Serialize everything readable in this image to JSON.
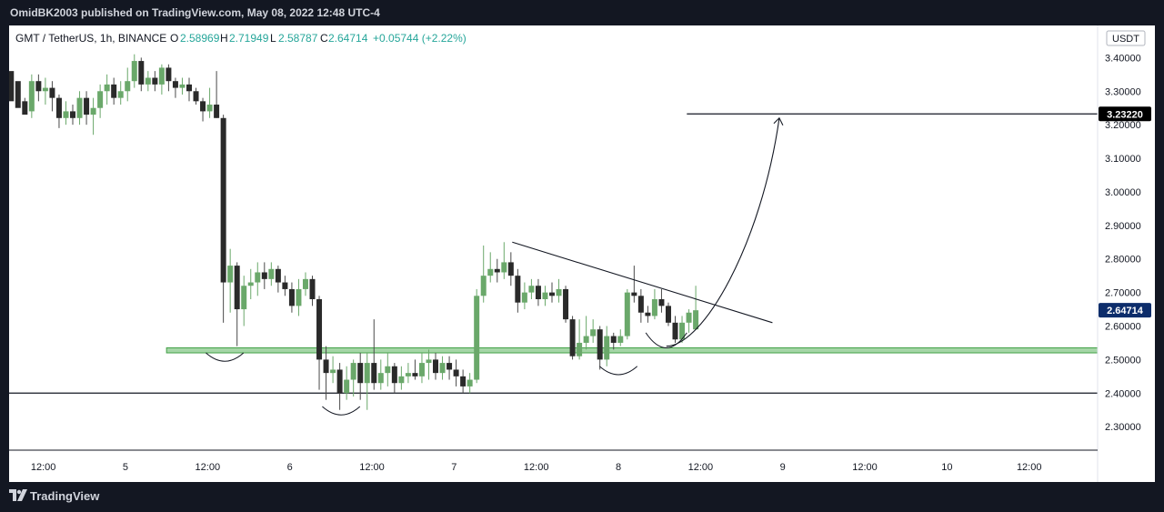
{
  "header": {
    "publish_line": "OmidBK2003 published on TradingView.com, May 08, 2022 12:48 UTC-4"
  },
  "footer": {
    "brand": "TradingView"
  },
  "chart_data": {
    "type": "candlestick",
    "symbol_line": "GMT / TetherUS, 1h, BINANCE",
    "ohlc": {
      "o_label": "O",
      "open": "2.58969",
      "h_label": "H",
      "high": "2.71949",
      "l_label": "L",
      "low": "2.58787",
      "c_label": "C",
      "close": "2.64714",
      "change": "+0.05744 (+2.22%)"
    },
    "currency": "USDT",
    "ylim": [
      2.23,
      3.42
    ],
    "y_ticks": [
      {
        "v": 3.4,
        "label": "3.40000"
      },
      {
        "v": 3.3,
        "label": "3.30000"
      },
      {
        "v": 3.2,
        "label": "3.20000"
      },
      {
        "v": 3.1,
        "label": "3.10000"
      },
      {
        "v": 3.0,
        "label": "3.00000"
      },
      {
        "v": 2.9,
        "label": "2.90000"
      },
      {
        "v": 2.8,
        "label": "2.80000"
      },
      {
        "v": 2.7,
        "label": "2.70000"
      },
      {
        "v": 2.6,
        "label": "2.60000"
      },
      {
        "v": 2.5,
        "label": "2.50000"
      },
      {
        "v": 2.4,
        "label": "2.40000"
      },
      {
        "v": 2.3,
        "label": "2.30000"
      }
    ],
    "x_ticks": [
      {
        "t": 12,
        "label": "12:00"
      },
      {
        "t": 24,
        "label": "5"
      },
      {
        "t": 36,
        "label": "12:00"
      },
      {
        "t": 48,
        "label": "6"
      },
      {
        "t": 60,
        "label": "12:00"
      },
      {
        "t": 72,
        "label": "7"
      },
      {
        "t": 84,
        "label": "12:00"
      },
      {
        "t": 96,
        "label": "8"
      },
      {
        "t": 108,
        "label": "12:00"
      },
      {
        "t": 120,
        "label": "9"
      },
      {
        "t": 132,
        "label": "12:00"
      },
      {
        "t": 144,
        "label": "10"
      },
      {
        "t": 156,
        "label": "12:00"
      }
    ],
    "xlim": [
      7,
      166
    ],
    "price_labels": [
      {
        "value": 3.2322,
        "label": "3.23220",
        "style": "black"
      },
      {
        "value": 2.64714,
        "label": "2.64714",
        "style": "navy"
      }
    ],
    "candles": [
      [
        7.3,
        3.36,
        3.27,
        3.35,
        3.33
      ],
      [
        8.3,
        3.33,
        3.25,
        3.32,
        3.27
      ],
      [
        9.3,
        3.27,
        3.23,
        3.28,
        3.24
      ],
      [
        10.3,
        3.24,
        3.33,
        3.35,
        3.22
      ],
      [
        11.3,
        3.33,
        3.3,
        3.35,
        3.27
      ],
      [
        12.3,
        3.3,
        3.31,
        3.34,
        3.26
      ],
      [
        13.3,
        3.31,
        3.28,
        3.33,
        3.24
      ],
      [
        14.3,
        3.28,
        3.22,
        3.29,
        3.19
      ],
      [
        15.3,
        3.22,
        3.24,
        3.27,
        3.2
      ],
      [
        16.3,
        3.24,
        3.22,
        3.26,
        3.2
      ],
      [
        17.3,
        3.22,
        3.28,
        3.3,
        3.2
      ],
      [
        18.3,
        3.28,
        3.23,
        3.3,
        3.2
      ],
      [
        19.3,
        3.23,
        3.25,
        3.28,
        3.17
      ],
      [
        20.3,
        3.25,
        3.3,
        3.32,
        3.22
      ],
      [
        21.3,
        3.3,
        3.32,
        3.35,
        3.26
      ],
      [
        22.3,
        3.32,
        3.28,
        3.34,
        3.26
      ],
      [
        23.3,
        3.28,
        3.3,
        3.33,
        3.26
      ],
      [
        24.3,
        3.3,
        3.33,
        3.37,
        3.27
      ],
      [
        25.3,
        3.33,
        3.39,
        3.41,
        3.31
      ],
      [
        26.3,
        3.39,
        3.32,
        3.4,
        3.3
      ],
      [
        27.3,
        3.32,
        3.34,
        3.36,
        3.3
      ],
      [
        28.3,
        3.34,
        3.32,
        3.36,
        3.3
      ],
      [
        29.3,
        3.32,
        3.37,
        3.38,
        3.29
      ],
      [
        30.3,
        3.37,
        3.33,
        3.38,
        3.3
      ],
      [
        31.3,
        3.33,
        3.31,
        3.34,
        3.28
      ],
      [
        32.3,
        3.31,
        3.32,
        3.34,
        3.29
      ],
      [
        33.3,
        3.32,
        3.3,
        3.34,
        3.27
      ],
      [
        34.3,
        3.3,
        3.27,
        3.31,
        3.26
      ],
      [
        35.3,
        3.27,
        3.24,
        3.28,
        3.21
      ],
      [
        36.3,
        3.24,
        3.26,
        3.31,
        3.22
      ],
      [
        37.3,
        3.26,
        3.22,
        3.36,
        3.22
      ],
      [
        38.3,
        3.22,
        2.73,
        3.23,
        2.61
      ],
      [
        39.3,
        2.73,
        2.78,
        2.83,
        2.64
      ],
      [
        40.3,
        2.78,
        2.65,
        2.79,
        2.54
      ],
      [
        41.3,
        2.65,
        2.72,
        2.75,
        2.6
      ],
      [
        42.3,
        2.72,
        2.73,
        2.77,
        2.68
      ],
      [
        43.3,
        2.73,
        2.76,
        2.79,
        2.69
      ],
      [
        44.3,
        2.76,
        2.74,
        2.79,
        2.71
      ],
      [
        45.3,
        2.74,
        2.77,
        2.79,
        2.72
      ],
      [
        46.3,
        2.77,
        2.73,
        2.78,
        2.7
      ],
      [
        47.3,
        2.73,
        2.71,
        2.75,
        2.69
      ],
      [
        48.3,
        2.71,
        2.66,
        2.73,
        2.64
      ],
      [
        49.3,
        2.66,
        2.71,
        2.74,
        2.63
      ],
      [
        50.3,
        2.71,
        2.74,
        2.76,
        2.69
      ],
      [
        51.3,
        2.74,
        2.68,
        2.75,
        2.66
      ],
      [
        52.3,
        2.68,
        2.5,
        2.69,
        2.41
      ],
      [
        53.3,
        2.5,
        2.46,
        2.54,
        2.38
      ],
      [
        54.3,
        2.46,
        2.47,
        2.51,
        2.43
      ],
      [
        55.3,
        2.47,
        2.4,
        2.49,
        2.35
      ],
      [
        56.3,
        2.4,
        2.44,
        2.48,
        2.38
      ],
      [
        57.3,
        2.44,
        2.49,
        2.5,
        2.39
      ],
      [
        58.3,
        2.49,
        2.43,
        2.52,
        2.38
      ],
      [
        59.3,
        2.43,
        2.49,
        2.52,
        2.35
      ],
      [
        60.3,
        2.49,
        2.43,
        2.62,
        2.41
      ],
      [
        61.3,
        2.43,
        2.46,
        2.5,
        2.41
      ],
      [
        62.3,
        2.46,
        2.48,
        2.52,
        2.42
      ],
      [
        63.3,
        2.48,
        2.43,
        2.49,
        2.4
      ],
      [
        64.3,
        2.43,
        2.45,
        2.48,
        2.41
      ],
      [
        65.3,
        2.45,
        2.46,
        2.49,
        2.43
      ],
      [
        66.3,
        2.46,
        2.45,
        2.5,
        2.44
      ],
      [
        67.3,
        2.45,
        2.49,
        2.52,
        2.43
      ],
      [
        68.3,
        2.49,
        2.5,
        2.53,
        2.44
      ],
      [
        69.3,
        2.5,
        2.46,
        2.52,
        2.44
      ],
      [
        70.3,
        2.46,
        2.49,
        2.51,
        2.44
      ],
      [
        71.3,
        2.49,
        2.47,
        2.51,
        2.44
      ],
      [
        72.3,
        2.47,
        2.45,
        2.5,
        2.42
      ],
      [
        73.3,
        2.45,
        2.42,
        2.47,
        2.4
      ],
      [
        74.3,
        2.42,
        2.44,
        2.46,
        2.4
      ],
      [
        75.3,
        2.44,
        2.69,
        2.71,
        2.43
      ],
      [
        76.3,
        2.69,
        2.75,
        2.84,
        2.67
      ],
      [
        77.3,
        2.75,
        2.77,
        2.82,
        2.73
      ],
      [
        78.3,
        2.77,
        2.76,
        2.8,
        2.73
      ],
      [
        79.3,
        2.76,
        2.79,
        2.85,
        2.74
      ],
      [
        80.3,
        2.79,
        2.75,
        2.82,
        2.72
      ],
      [
        81.3,
        2.75,
        2.67,
        2.77,
        2.64
      ],
      [
        82.3,
        2.67,
        2.7,
        2.73,
        2.65
      ],
      [
        83.3,
        2.7,
        2.72,
        2.74,
        2.68
      ],
      [
        84.3,
        2.72,
        2.68,
        2.74,
        2.66
      ],
      [
        85.3,
        2.68,
        2.7,
        2.72,
        2.66
      ],
      [
        86.3,
        2.7,
        2.69,
        2.73,
        2.67
      ],
      [
        87.3,
        2.69,
        2.71,
        2.74,
        2.67
      ],
      [
        88.3,
        2.71,
        2.62,
        2.72,
        2.61
      ],
      [
        89.3,
        2.62,
        2.51,
        2.63,
        2.5
      ],
      [
        90.3,
        2.51,
        2.55,
        2.62,
        2.5
      ],
      [
        91.3,
        2.55,
        2.57,
        2.63,
        2.53
      ],
      [
        92.3,
        2.57,
        2.59,
        2.62,
        2.55
      ],
      [
        93.3,
        2.59,
        2.5,
        2.6,
        2.47
      ],
      [
        94.3,
        2.5,
        2.57,
        2.6,
        2.48
      ],
      [
        95.3,
        2.57,
        2.55,
        2.58,
        2.53
      ],
      [
        96.3,
        2.55,
        2.57,
        2.59,
        2.54
      ],
      [
        97.3,
        2.57,
        2.7,
        2.71,
        2.56
      ],
      [
        98.3,
        2.7,
        2.69,
        2.78,
        2.67
      ],
      [
        99.3,
        2.69,
        2.64,
        2.71,
        2.61
      ],
      [
        100.3,
        2.64,
        2.63,
        2.66,
        2.61
      ],
      [
        101.3,
        2.63,
        2.68,
        2.71,
        2.62
      ],
      [
        102.3,
        2.68,
        2.66,
        2.71,
        2.64
      ],
      [
        103.3,
        2.66,
        2.61,
        2.67,
        2.6
      ],
      [
        104.3,
        2.61,
        2.56,
        2.63,
        2.55
      ],
      [
        105.3,
        2.56,
        2.61,
        2.63,
        2.55
      ],
      [
        106.3,
        2.61,
        2.64,
        2.65,
        2.58
      ],
      [
        107.3,
        2.59,
        2.647,
        2.72,
        2.588
      ]
    ],
    "support_zone": [
      2.52,
      2.535
    ],
    "horizontal_lines": [
      {
        "value": 2.4
      },
      {
        "value": 3.2322
      }
    ],
    "trendline": {
      "from": [
        80.5,
        2.85
      ],
      "to": [
        118.5,
        2.61
      ]
    },
    "projection_arrow": {
      "from": [
        103,
        2.54
      ],
      "to": [
        119.5,
        3.22
      ]
    },
    "curves": [
      {
        "cx": 38.5,
        "y": 2.52,
        "w": 5.5,
        "d": 0.05
      },
      {
        "cx": 55.5,
        "y": 2.36,
        "w": 5.5,
        "d": 0.05
      },
      {
        "cx": 96,
        "y": 2.48,
        "w": 5.5,
        "d": 0.05
      },
      {
        "cx": 103,
        "y": 2.58,
        "w": 6,
        "d": 0.09
      }
    ]
  }
}
